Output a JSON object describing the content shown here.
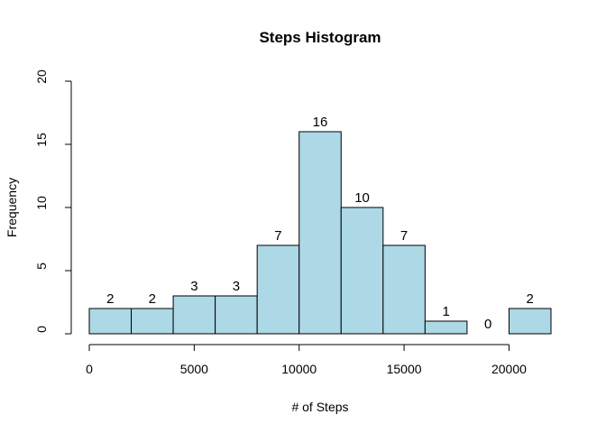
{
  "chart_data": {
    "type": "bar",
    "title": "Steps Histogram",
    "xlabel": "# of Steps",
    "ylabel": "Frequency",
    "bins": [
      {
        "start": 0,
        "end": 2000
      },
      {
        "start": 2000,
        "end": 4000
      },
      {
        "start": 4000,
        "end": 6000
      },
      {
        "start": 6000,
        "end": 8000
      },
      {
        "start": 8000,
        "end": 10000
      },
      {
        "start": 10000,
        "end": 12000
      },
      {
        "start": 12000,
        "end": 14000
      },
      {
        "start": 14000,
        "end": 16000
      },
      {
        "start": 16000,
        "end": 18000
      },
      {
        "start": 18000,
        "end": 20000
      },
      {
        "start": 20000,
        "end": 22000
      }
    ],
    "values": [
      2,
      2,
      3,
      3,
      7,
      16,
      10,
      7,
      1,
      0,
      2
    ],
    "xticks": [
      0,
      5000,
      10000,
      15000,
      20000
    ],
    "yticks": [
      0,
      5,
      10,
      15,
      20
    ],
    "xlim": [
      0,
      22000
    ],
    "ylim": [
      0,
      20
    ],
    "bar_color": "#add8e6",
    "grid": false,
    "legend": "none"
  }
}
